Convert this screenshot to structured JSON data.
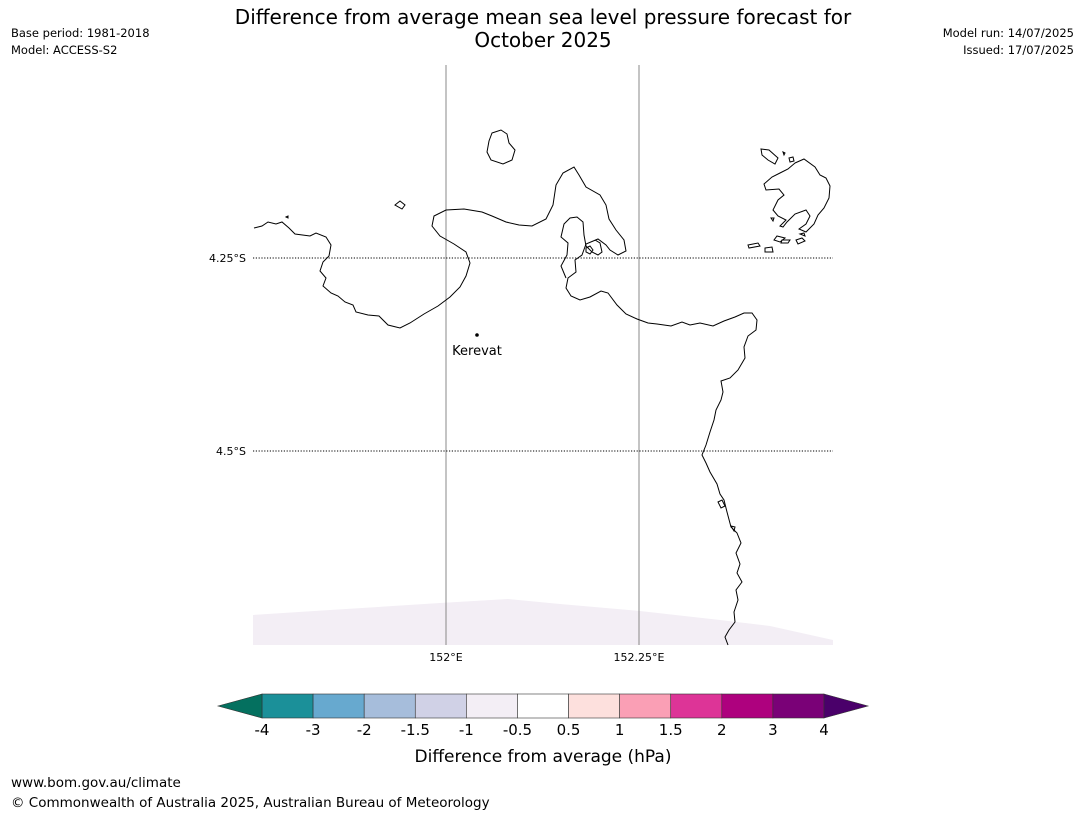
{
  "header": {
    "title_line1": "Difference from average mean sea level pressure forecast for",
    "title_line2": "October 2025",
    "base_period": "Base period: 1981-2018",
    "model": "Model: ACCESS-S2",
    "model_run": "Model run: 14/07/2025",
    "issued": "Issued: 17/07/2025"
  },
  "map": {
    "lat_labels": [
      "4.25°S",
      "4.5°S"
    ],
    "lon_labels": [
      "152°E",
      "152.25°E"
    ],
    "place_label": "Kerevat",
    "coastline_color": "#000000",
    "anomaly_fill_color": "#f3eef5"
  },
  "colorbar": {
    "label": "Difference from average (hPa)",
    "ticks": [
      "-4",
      "-3",
      "-2",
      "-1.5",
      "-1",
      "-0.5",
      "0.5",
      "1",
      "1.5",
      "2",
      "3",
      "4"
    ],
    "under_color": "#04705f",
    "over_color": "#4a006a",
    "colors": [
      "#1b9099",
      "#67a9cf",
      "#a6bddb",
      "#d0d1e6",
      "#f3eef5",
      "#ffffff",
      "#fde0dd",
      "#fa9fb5",
      "#dd3497",
      "#ae017e",
      "#7a0177"
    ]
  },
  "footer": {
    "url": "www.bom.gov.au/climate",
    "copyright": "© Commonwealth of Australia 2025, Australian Bureau of Meteorology"
  }
}
